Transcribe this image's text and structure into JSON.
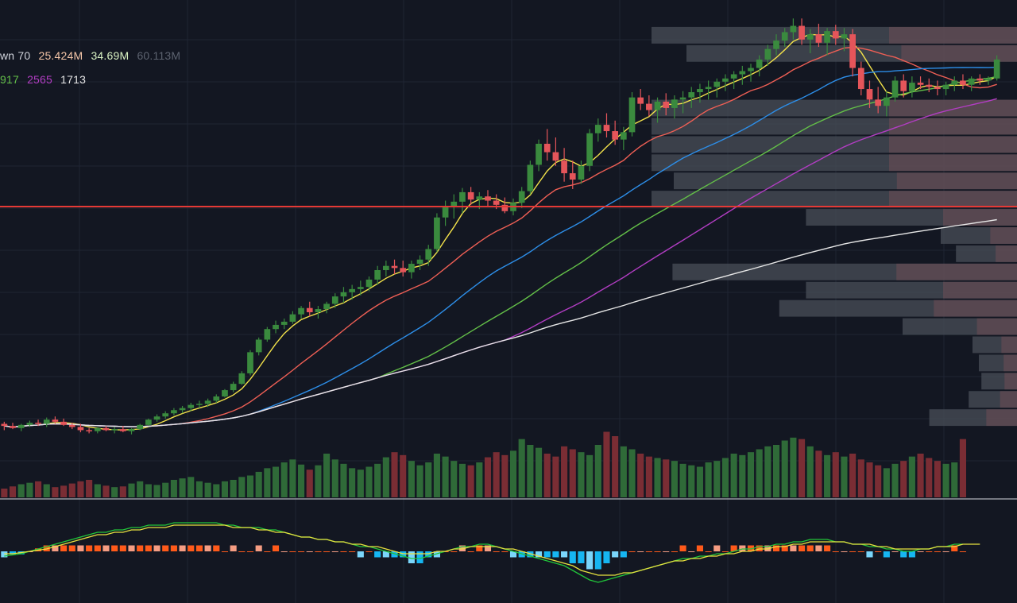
{
  "legend": {
    "volume_label": "wn 70",
    "volume_values": [
      "25.424M",
      "34.69M",
      "60.113M"
    ],
    "ma_values": [
      "917",
      "2565",
      "1713"
    ]
  },
  "colors": {
    "background": "#131722",
    "grid": "#1f2433",
    "up": "#3a8a3e",
    "down": "#e5555a",
    "vol_up": "#2f6a38",
    "vol_down": "#7a2d34",
    "ma_short": "#f3e24a",
    "ma_mid": "#ef5f55",
    "ma_blue": "#2d8ee8",
    "ma_green": "#63bf48",
    "ma_purple": "#b23dc3",
    "ma_white": "#e6e6e6",
    "price_line": "#e53935",
    "profile_main": "#4a4f58",
    "profile_mixed": "#6b4c55",
    "macd_line": "#21c63a",
    "signal_line": "#e8e23f",
    "hist_up": "#ff5a1a",
    "hist_up_light": "#f59d83",
    "hist_down": "#16b6f2",
    "hist_down_light": "#7ad6fb"
  },
  "chart_data": {
    "type": "candlestick",
    "title": "",
    "xlabel": "",
    "ylabel": "",
    "grid": true,
    "price_range": [
      0,
      600
    ],
    "volume_range": [
      0,
      120
    ],
    "macd_range": [
      -18,
      18
    ],
    "current_price_level": 350,
    "ohlc": [
      [
        520,
        522,
        514,
        518
      ],
      [
        518,
        521,
        515,
        516
      ],
      [
        516,
        520,
        513,
        519
      ],
      [
        519,
        523,
        517,
        521
      ],
      [
        521,
        524,
        518,
        520
      ],
      [
        520,
        526,
        517,
        524
      ],
      [
        524,
        527,
        520,
        522
      ],
      [
        522,
        525,
        518,
        519
      ],
      [
        519,
        521,
        515,
        517
      ],
      [
        517,
        520,
        512,
        514
      ],
      [
        514,
        516,
        511,
        513
      ],
      [
        513,
        517,
        511,
        516
      ],
      [
        516,
        518,
        513,
        514
      ],
      [
        514,
        517,
        511,
        515
      ],
      [
        515,
        518,
        512,
        513
      ],
      [
        513,
        516,
        510,
        515
      ],
      [
        515,
        520,
        514,
        519
      ],
      [
        519,
        525,
        518,
        524
      ],
      [
        524,
        529,
        522,
        527
      ],
      [
        527,
        532,
        525,
        530
      ],
      [
        530,
        535,
        528,
        533
      ],
      [
        533,
        537,
        530,
        535
      ],
      [
        535,
        540,
        532,
        538
      ],
      [
        538,
        542,
        535,
        539
      ],
      [
        539,
        544,
        536,
        542
      ],
      [
        542,
        548,
        540,
        546
      ],
      [
        546,
        553,
        545,
        552
      ],
      [
        552,
        560,
        550,
        558
      ],
      [
        558,
        570,
        557,
        568
      ],
      [
        568,
        590,
        566,
        588
      ],
      [
        588,
        602,
        585,
        600
      ],
      [
        600,
        612,
        598,
        610
      ],
      [
        610,
        618,
        606,
        614
      ],
      [
        614,
        620,
        610,
        617
      ],
      [
        617,
        627,
        615,
        624
      ],
      [
        624,
        632,
        620,
        630
      ],
      [
        630,
        636,
        622,
        626
      ],
      [
        626,
        632,
        620,
        629
      ],
      [
        629,
        636,
        625,
        634
      ],
      [
        634,
        644,
        630,
        641
      ],
      [
        641,
        650,
        635,
        645
      ],
      [
        645,
        652,
        638,
        648
      ],
      [
        648,
        656,
        642,
        650
      ],
      [
        650,
        660,
        646,
        657
      ],
      [
        657,
        670,
        652,
        666
      ],
      [
        666,
        675,
        660,
        670
      ],
      [
        670,
        676,
        662,
        668
      ],
      [
        668,
        675,
        660,
        664
      ],
      [
        664,
        675,
        658,
        672
      ],
      [
        672,
        680,
        666,
        676
      ],
      [
        676,
        690,
        670,
        686
      ],
      [
        686,
        720,
        683,
        716
      ],
      [
        716,
        732,
        708,
        726
      ],
      [
        726,
        738,
        715,
        731
      ],
      [
        731,
        744,
        720,
        740
      ],
      [
        740,
        745,
        728,
        733
      ],
      [
        733,
        740,
        724,
        736
      ],
      [
        736,
        742,
        727,
        732
      ],
      [
        732,
        738,
        724,
        728
      ],
      [
        728,
        735,
        720,
        722
      ],
      [
        722,
        734,
        718,
        730
      ],
      [
        730,
        745,
        725,
        741
      ],
      [
        741,
        770,
        738,
        766
      ],
      [
        766,
        790,
        760,
        786
      ],
      [
        786,
        800,
        770,
        778
      ],
      [
        778,
        792,
        765,
        770
      ],
      [
        770,
        782,
        750,
        758
      ],
      [
        758,
        770,
        743,
        752
      ],
      [
        752,
        770,
        748,
        765
      ],
      [
        765,
        800,
        760,
        796
      ],
      [
        796,
        810,
        788,
        804
      ],
      [
        804,
        815,
        792,
        798
      ],
      [
        798,
        808,
        785,
        790
      ],
      [
        790,
        802,
        780,
        797
      ],
      [
        797,
        835,
        793,
        830
      ],
      [
        830,
        838,
        818,
        824
      ],
      [
        824,
        832,
        812,
        818
      ],
      [
        818,
        830,
        806,
        826
      ],
      [
        826,
        834,
        813,
        820
      ],
      [
        820,
        832,
        810,
        828
      ],
      [
        828,
        836,
        815,
        830
      ],
      [
        830,
        840,
        820,
        835
      ],
      [
        835,
        843,
        825,
        838
      ],
      [
        838,
        846,
        828,
        840
      ],
      [
        840,
        848,
        830,
        845
      ],
      [
        845,
        852,
        836,
        848
      ],
      [
        848,
        855,
        838,
        852
      ],
      [
        852,
        860,
        842,
        855
      ],
      [
        855,
        862,
        845,
        858
      ],
      [
        858,
        870,
        850,
        866
      ],
      [
        866,
        880,
        860,
        876
      ],
      [
        876,
        890,
        870,
        884
      ],
      [
        884,
        896,
        878,
        892
      ],
      [
        892,
        905,
        885,
        898
      ],
      [
        898,
        905,
        880,
        885
      ],
      [
        885,
        895,
        872,
        890
      ],
      [
        890,
        900,
        878,
        882
      ],
      [
        882,
        896,
        870,
        893
      ],
      [
        893,
        899,
        880,
        886
      ],
      [
        886,
        896,
        874,
        890
      ],
      [
        890,
        895,
        850,
        858
      ],
      [
        858,
        864,
        832,
        838
      ],
      [
        838,
        846,
        820,
        828
      ],
      [
        828,
        840,
        815,
        822
      ],
      [
        822,
        836,
        812,
        830
      ],
      [
        830,
        850,
        826,
        846
      ],
      [
        846,
        852,
        830,
        836
      ],
      [
        836,
        850,
        830,
        844
      ],
      [
        844,
        850,
        838,
        842
      ],
      [
        842,
        848,
        835,
        840
      ],
      [
        840,
        846,
        832,
        838
      ],
      [
        838,
        845,
        832,
        842
      ],
      [
        842,
        850,
        836,
        846
      ],
      [
        846,
        852,
        838,
        842
      ],
      [
        842,
        850,
        836,
        848
      ],
      [
        848,
        852,
        842,
        846
      ],
      [
        846,
        850,
        842,
        848
      ],
      [
        848,
        870,
        846,
        866
      ]
    ],
    "volume": [
      12,
      15,
      18,
      20,
      22,
      18,
      14,
      16,
      19,
      22,
      24,
      18,
      16,
      14,
      15,
      19,
      22,
      18,
      17,
      20,
      24,
      26,
      28,
      22,
      20,
      18,
      22,
      24,
      28,
      30,
      35,
      40,
      42,
      48,
      52,
      45,
      38,
      44,
      60,
      52,
      46,
      40,
      38,
      42,
      46,
      55,
      62,
      58,
      50,
      44,
      48,
      60,
      56,
      50,
      46,
      44,
      48,
      55,
      62,
      58,
      64,
      80,
      72,
      68,
      60,
      56,
      70,
      66,
      62,
      58,
      72,
      90,
      84,
      70,
      66,
      60,
      56,
      54,
      52,
      50,
      46,
      44,
      42,
      48,
      50,
      54,
      60,
      58,
      62,
      66,
      70,
      72,
      78,
      82,
      80,
      70,
      64,
      58,
      62,
      56,
      60,
      52,
      48,
      44,
      40,
      46,
      50,
      56,
      60,
      54,
      50,
      46,
      48,
      80
    ],
    "macd": [
      -2,
      -1.5,
      -1,
      0,
      1,
      2,
      3,
      4,
      5,
      6,
      7,
      8,
      8,
      9,
      9,
      10,
      10,
      11,
      11,
      11,
      12,
      12,
      12,
      12,
      12,
      12,
      11,
      11,
      10,
      10,
      10,
      9,
      9,
      8,
      7,
      6,
      6,
      5,
      5,
      4,
      4,
      3,
      2,
      2,
      1,
      0,
      -1,
      -2,
      -3,
      -3,
      -2,
      -1,
      0,
      1,
      2,
      2,
      3,
      3,
      2,
      1,
      0,
      -1,
      -2,
      -3,
      -4,
      -5,
      -6,
      -8,
      -10,
      -12,
      -13,
      -12,
      -11,
      -10,
      -9,
      -8,
      -7,
      -6,
      -5,
      -4,
      -3,
      -3,
      -2,
      -2,
      -1,
      -1,
      0,
      1,
      1,
      2,
      2,
      3,
      3,
      4,
      4,
      5,
      5,
      5,
      4,
      4,
      3,
      3,
      2,
      2,
      1,
      1,
      0,
      0,
      1,
      1,
      2,
      2,
      3,
      3
    ],
    "signal": [
      -1,
      -1,
      -0.5,
      0,
      0.5,
      1,
      2,
      3,
      4,
      5,
      6,
      7,
      7,
      8,
      8,
      9,
      9,
      10,
      10,
      10,
      11,
      11,
      11,
      11,
      11,
      11,
      11,
      10,
      10,
      10,
      9,
      9,
      8,
      8,
      7,
      6,
      6,
      5,
      5,
      4,
      4,
      3,
      3,
      2,
      2,
      1,
      0,
      -1,
      -1,
      -1,
      -1,
      0,
      0,
      1,
      1,
      2,
      2,
      2,
      2,
      1,
      1,
      0,
      -1,
      -2,
      -3,
      -4,
      -5,
      -6,
      -8,
      -9,
      -10,
      -10,
      -10,
      -9,
      -9,
      -8,
      -7,
      -6,
      -5,
      -4,
      -4,
      -3,
      -3,
      -2,
      -2,
      -1,
      -1,
      0,
      0,
      1,
      1,
      2,
      2,
      3,
      3,
      4,
      4,
      4,
      4,
      4,
      3,
      3,
      3,
      2,
      2,
      1,
      1,
      1,
      1,
      1,
      2,
      2,
      2,
      3,
      3,
      3
    ]
  }
}
